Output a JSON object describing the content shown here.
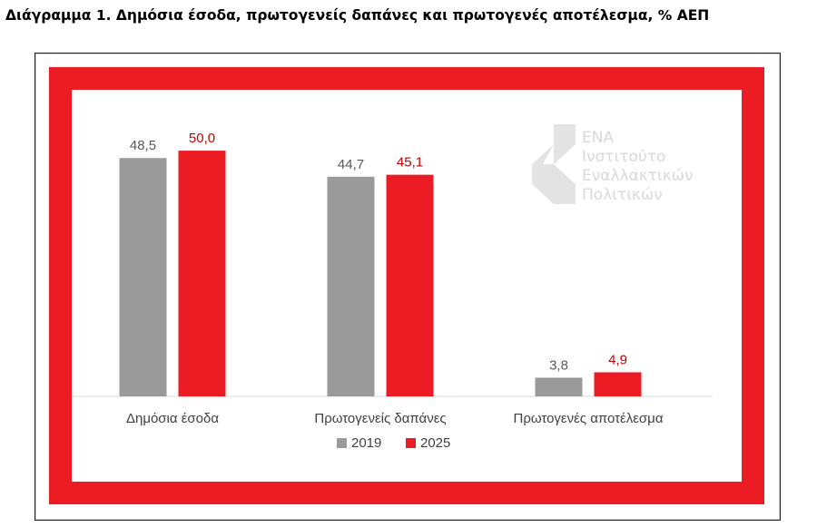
{
  "page": {
    "title": "Διάγραμμα 1. Δημόσια έσοδα, πρωτογενείς δαπάνες και πρωτογενές αποτέλεσμα, % ΑΕΠ"
  },
  "logo": {
    "line1": "ΕΝΑ",
    "line2": "Ινστιτούτο",
    "line3": "Εναλλακτικών",
    "line4": "Πολιτικών"
  },
  "colors": {
    "series_2019": "#9a9a9a",
    "series_2025": "#ec1c24",
    "frame": "#ec1c24",
    "label_2019": "#595959",
    "label_2025": "#c00000"
  },
  "chart_data": {
    "type": "bar",
    "title": "Διάγραμμα 1. Δημόσια έσοδα, πρωτογενείς δαπάνες και πρωτογενές αποτέλεσμα, % ΑΕΠ",
    "categories": [
      "Δημόσια έσοδα",
      "Πρωτογενείς δαπάνες",
      "Πρωτογενές αποτέλεσμα"
    ],
    "series": [
      {
        "name": "2019",
        "values": [
          48.5,
          44.7,
          3.8
        ],
        "labels": [
          "48,5",
          "44,7",
          "3,8"
        ]
      },
      {
        "name": "2025",
        "values": [
          50.0,
          45.1,
          4.9
        ],
        "labels": [
          "50,0",
          "45,1",
          "4,9"
        ]
      }
    ],
    "ylim": [
      0,
      55
    ],
    "grid": false,
    "legend": "bottom"
  }
}
